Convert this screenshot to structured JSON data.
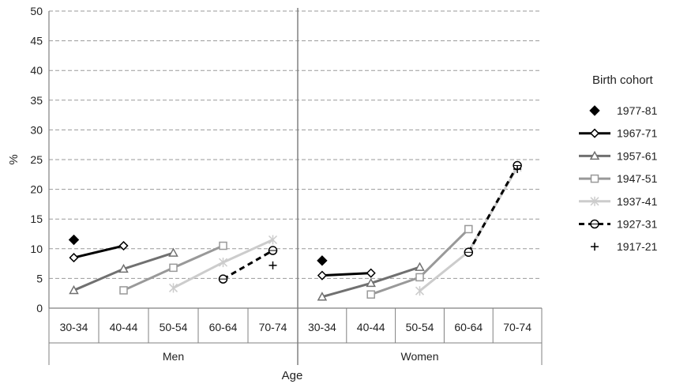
{
  "chart_data": {
    "type": "line",
    "title": "",
    "ylabel": "%",
    "xlabel": "Age",
    "ylim": [
      0,
      50
    ],
    "yticks": [
      0,
      5,
      10,
      15,
      20,
      25,
      30,
      35,
      40,
      45,
      50
    ],
    "grid": "horizontal dashed",
    "legend_position": "right",
    "legend_title": "Birth cohort",
    "categories": [
      "30-34",
      "40-44",
      "50-54",
      "60-64",
      "70-74"
    ],
    "groups": [
      "Men",
      "Women"
    ],
    "series": [
      {
        "name": "1977-81",
        "color": "#000000",
        "marker": "diamond-filled",
        "line": "none",
        "men": [
          11.5,
          null,
          null,
          null,
          null
        ],
        "women": [
          8.0,
          null,
          null,
          null,
          null
        ]
      },
      {
        "name": "1967-71",
        "color": "#000000",
        "marker": "diamond-open",
        "line": "solid",
        "men": [
          8.5,
          10.5,
          null,
          null,
          null
        ],
        "women": [
          5.5,
          5.9,
          null,
          null,
          null
        ]
      },
      {
        "name": "1957-61",
        "color": "#707070",
        "marker": "triangle-open",
        "line": "solid",
        "men": [
          3.0,
          6.6,
          9.3,
          null,
          null
        ],
        "women": [
          1.9,
          4.2,
          6.9,
          null,
          null
        ]
      },
      {
        "name": "1947-51",
        "color": "#999999",
        "marker": "square-open",
        "line": "solid",
        "men": [
          null,
          3.0,
          6.8,
          10.5,
          null
        ],
        "women": [
          null,
          2.3,
          5.2,
          13.3,
          null
        ]
      },
      {
        "name": "1937-41",
        "color": "#cccccc",
        "marker": "star",
        "line": "solid",
        "men": [
          null,
          null,
          3.4,
          7.7,
          11.5
        ],
        "women": [
          null,
          null,
          2.9,
          9.5,
          23.7
        ]
      },
      {
        "name": "1927-31",
        "color": "#000000",
        "marker": "circle-open",
        "line": "dashed",
        "men": [
          null,
          null,
          null,
          4.9,
          9.7
        ],
        "women": [
          null,
          null,
          null,
          9.4,
          24.0
        ]
      },
      {
        "name": "1917-21",
        "color": "#000000",
        "marker": "plus",
        "line": "none",
        "men": [
          null,
          null,
          null,
          null,
          7.2
        ],
        "women": [
          null,
          null,
          null,
          null,
          23.4
        ]
      }
    ]
  }
}
